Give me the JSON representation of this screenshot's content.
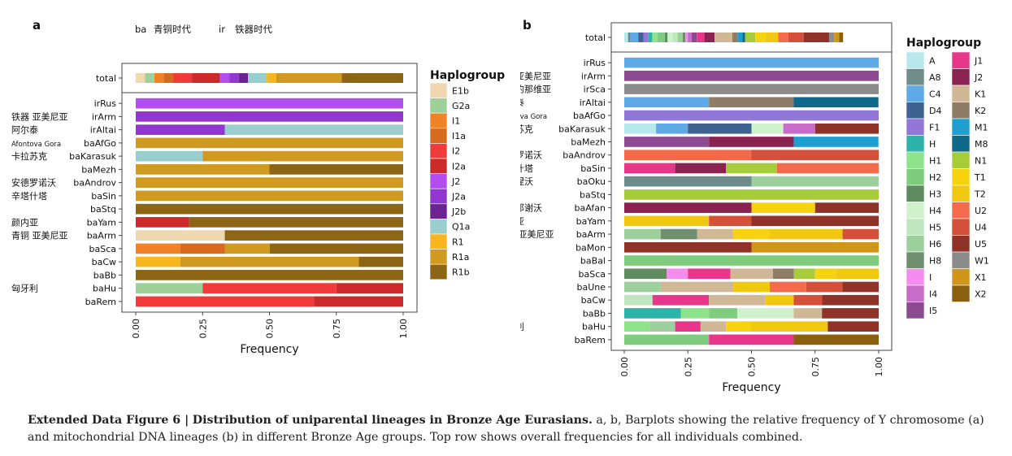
{
  "caption": {
    "label": "Extended Data Figure 6 |",
    "title": "Distribution of uniparental lineages in Bronze Age Eurasians.",
    "body": "a, b, Barplots showing the relative frequency of Y chromosome (a) and mitochondrial DNA lineages (b) in different Bronze Age groups. Top row shows overall frequencies for all individuals combined."
  },
  "chart_data": [
    {
      "panel": "a",
      "type": "bar",
      "orientation": "horizontal",
      "stacked": true,
      "prefix_note": [
        "ba",
        "青铜时代",
        "ir",
        "铁器时代"
      ],
      "xlabel": "Frequency",
      "xlim": [
        0,
        1
      ],
      "xticks": [
        "0.00",
        "0.25",
        "0.50",
        "0.75",
        "1.00"
      ],
      "legend_title": "Haplogroup",
      "legend_position": "right",
      "legend": [
        {
          "name": "E1b",
          "color": "#EFD8B0"
        },
        {
          "name": "G2a",
          "color": "#9ED09A"
        },
        {
          "name": "I1",
          "color": "#F28226"
        },
        {
          "name": "I1a",
          "color": "#D66A1E"
        },
        {
          "name": "I2",
          "color": "#F23A3A"
        },
        {
          "name": "I2a",
          "color": "#CC2A2A"
        },
        {
          "name": "J2",
          "color": "#B24DF0"
        },
        {
          "name": "J2a",
          "color": "#9236D0"
        },
        {
          "name": "J2b",
          "color": "#6A2390"
        },
        {
          "name": "Q1a",
          "color": "#9ACDCD"
        },
        {
          "name": "R1",
          "color": "#F7B61E"
        },
        {
          "name": "R1a",
          "color": "#CF9A1F"
        },
        {
          "name": "R1b",
          "color": "#8D6615"
        }
      ],
      "total": {
        "label": "total",
        "segments": [
          [
            "E1b",
            0.035
          ],
          [
            "G2a",
            0.035
          ],
          [
            "I1",
            0.035
          ],
          [
            "I1a",
            0.035
          ],
          [
            "I2",
            0.07
          ],
          [
            "I2a",
            0.105
          ],
          [
            "J2",
            0.035
          ],
          [
            "J2a",
            0.035
          ],
          [
            "J2b",
            0.035
          ],
          [
            "Q1a",
            0.07
          ],
          [
            "R1",
            0.035
          ],
          [
            "R1a",
            0.245
          ],
          [
            "R1b",
            0.24
          ]
        ]
      },
      "rows": [
        {
          "label": "irRus",
          "annot": "",
          "segments": [
            [
              "J2",
              1.0
            ]
          ]
        },
        {
          "label": "irArm",
          "annot": "铁器 亚美尼亚",
          "segments": [
            [
              "J2a",
              1.0
            ]
          ]
        },
        {
          "label": "irAltai",
          "annot": "阿尔泰",
          "segments": [
            [
              "J2a",
              0.333
            ],
            [
              "Q1a",
              0.667
            ]
          ]
        },
        {
          "label": "baAfGo",
          "annot": "Afontova Gora",
          "segments": [
            [
              "R1a",
              1.0
            ]
          ]
        },
        {
          "label": "baKarasuk",
          "annot": "卡拉苏克",
          "segments": [
            [
              "Q1a",
              0.25
            ],
            [
              "R1a",
              0.75
            ]
          ]
        },
        {
          "label": "baMezh",
          "annot": "",
          "segments": [
            [
              "R1a",
              0.5
            ],
            [
              "R1b",
              0.5
            ]
          ]
        },
        {
          "label": "baAndrov",
          "annot": "安德罗诺沃",
          "segments": [
            [
              "R1a",
              1.0
            ]
          ]
        },
        {
          "label": "baSin",
          "annot": "辛塔什塔",
          "segments": [
            [
              "R1a",
              1.0
            ]
          ]
        },
        {
          "label": "baStq",
          "annot": "",
          "segments": [
            [
              "R1b",
              1.0
            ]
          ]
        },
        {
          "label": "baYam",
          "annot": "颜内亚",
          "segments": [
            [
              "I2a",
              0.2
            ],
            [
              "R1b",
              0.8
            ]
          ]
        },
        {
          "label": "baArm",
          "annot": "青铜 亚美尼亚",
          "segments": [
            [
              "E1b",
              0.333
            ],
            [
              "R1b",
              0.667
            ]
          ]
        },
        {
          "label": "baSca",
          "annot": "",
          "segments": [
            [
              "I1",
              0.167
            ],
            [
              "I1a",
              0.167
            ],
            [
              "R1a",
              0.167
            ],
            [
              "R1b",
              0.5
            ]
          ]
        },
        {
          "label": "baCw",
          "annot": "",
          "segments": [
            [
              "R1",
              0.167
            ],
            [
              "R1a",
              0.667
            ],
            [
              "R1b",
              0.167
            ]
          ]
        },
        {
          "label": "baBb",
          "annot": "",
          "segments": [
            [
              "R1b",
              1.0
            ]
          ]
        },
        {
          "label": "baHu",
          "annot": "匈牙利",
          "segments": [
            [
              "G2a",
              0.25
            ],
            [
              "I2",
              0.5
            ],
            [
              "I2a",
              0.25
            ]
          ]
        },
        {
          "label": "baRem",
          "annot": "",
          "segments": [
            [
              "I2",
              0.667
            ],
            [
              "I2a",
              0.333
            ]
          ]
        }
      ]
    },
    {
      "panel": "b",
      "type": "bar",
      "orientation": "horizontal",
      "stacked": true,
      "xlabel": "Frequency",
      "xlim": [
        0,
        1
      ],
      "xticks": [
        "0.00",
        "0.25",
        "0.50",
        "0.75",
        "1.00"
      ],
      "legend_title": "Haplogroup",
      "legend_position": "right",
      "legend": [
        {
          "name": "A",
          "color": "#B6E8EC"
        },
        {
          "name": "A8",
          "color": "#6E8C8C"
        },
        {
          "name": "C4",
          "color": "#5EA9E6"
        },
        {
          "name": "D4",
          "color": "#3F6390"
        },
        {
          "name": "F1",
          "color": "#9077D8"
        },
        {
          "name": "H",
          "color": "#2CB3AA"
        },
        {
          "name": "H1",
          "color": "#8FE38A"
        },
        {
          "name": "H2",
          "color": "#7FCC7F"
        },
        {
          "name": "H3",
          "color": "#5E8C5E"
        },
        {
          "name": "H4",
          "color": "#CFF2CC"
        },
        {
          "name": "H5",
          "color": "#BFE6BF"
        },
        {
          "name": "H6",
          "color": "#9CCF9C"
        },
        {
          "name": "H8",
          "color": "#6F8F6F"
        },
        {
          "name": "I",
          "color": "#F58CF0"
        },
        {
          "name": "I4",
          "color": "#C96BC9"
        },
        {
          "name": "I5",
          "color": "#8C4A90"
        },
        {
          "name": "J1",
          "color": "#E8378A"
        },
        {
          "name": "J2",
          "color": "#8A2252"
        },
        {
          "name": "K1",
          "color": "#D0B896"
        },
        {
          "name": "K2",
          "color": "#8E7C66"
        },
        {
          "name": "M1",
          "color": "#1F9ED0"
        },
        {
          "name": "M8",
          "color": "#0F6A8A"
        },
        {
          "name": "N1",
          "color": "#A6CC3A"
        },
        {
          "name": "T1",
          "color": "#F7D20F"
        },
        {
          "name": "T2",
          "color": "#F0C810"
        },
        {
          "name": "U2",
          "color": "#F56A4A"
        },
        {
          "name": "U4",
          "color": "#D4503A"
        },
        {
          "name": "U5",
          "color": "#8F3328"
        },
        {
          "name": "W1",
          "color": "#8C8C8C"
        },
        {
          "name": "X1",
          "color": "#D0961A"
        },
        {
          "name": "X2",
          "color": "#8A6010"
        }
      ],
      "total": {
        "label": "total",
        "segments": [
          [
            "A",
            0.015
          ],
          [
            "A8",
            0.01
          ],
          [
            "C4",
            0.03
          ],
          [
            "D4",
            0.02
          ],
          [
            "F1",
            0.02
          ],
          [
            "H",
            0.015
          ],
          [
            "H1",
            0.02
          ],
          [
            "H2",
            0.03
          ],
          [
            "H3",
            0.01
          ],
          [
            "H4",
            0.02
          ],
          [
            "H5",
            0.02
          ],
          [
            "H6",
            0.02
          ],
          [
            "H8",
            0.01
          ],
          [
            "I",
            0.01
          ],
          [
            "I4",
            0.015
          ],
          [
            "I5",
            0.02
          ],
          [
            "J1",
            0.03
          ],
          [
            "J2",
            0.04
          ],
          [
            "K1",
            0.07
          ],
          [
            "K2",
            0.02
          ],
          [
            "M1",
            0.02
          ],
          [
            "M8",
            0.01
          ],
          [
            "N1",
            0.04
          ],
          [
            "T1",
            0.04
          ],
          [
            "T2",
            0.05
          ],
          [
            "U2",
            0.04
          ],
          [
            "U4",
            0.06
          ],
          [
            "U5",
            0.1
          ],
          [
            "W1",
            0.02
          ],
          [
            "X1",
            0.02
          ],
          [
            "X2",
            0.015
          ]
        ]
      },
      "rows": [
        {
          "label": "irRus",
          "annot": "",
          "segments": [
            [
              "C4",
              1.0
            ]
          ]
        },
        {
          "label": "irArm",
          "annot": "铁器亚美尼亚",
          "segments": [
            [
              "I5",
              1.0
            ]
          ]
        },
        {
          "label": "irSca",
          "annot": "斯堪的那维亚",
          "segments": [
            [
              "W1",
              1.0
            ]
          ]
        },
        {
          "label": "irAltai",
          "annot": "阿尔泰",
          "segments": [
            [
              "C4",
              0.333
            ],
            [
              "K2",
              0.333
            ],
            [
              "M8",
              0.333
            ]
          ]
        },
        {
          "label": "baAfGo",
          "annot": "Afontova Gora",
          "segments": [
            [
              "F1",
              1.0
            ]
          ]
        },
        {
          "label": "baKarasuk",
          "annot": "卡拉苏克",
          "segments": [
            [
              "A",
              0.125
            ],
            [
              "C4",
              0.125
            ],
            [
              "D4",
              0.25
            ],
            [
              "H4",
              0.125
            ],
            [
              "I4",
              0.125
            ],
            [
              "U5",
              0.25
            ]
          ]
        },
        {
          "label": "baMezh",
          "annot": "",
          "segments": [
            [
              "I5",
              0.333
            ],
            [
              "J2",
              0.333
            ],
            [
              "M1",
              0.333
            ]
          ]
        },
        {
          "label": "baAndrov",
          "annot": "安德罗诺沃",
          "segments": [
            [
              "U2",
              0.5
            ],
            [
              "U4",
              0.5
            ]
          ]
        },
        {
          "label": "baSin",
          "annot": "辛塔什塔",
          "segments": [
            [
              "J1",
              0.2
            ],
            [
              "J2",
              0.2
            ],
            [
              "N1",
              0.2
            ],
            [
              "U2",
              0.4
            ]
          ]
        },
        {
          "label": "baOku",
          "annot": "奥库涅沃",
          "segments": [
            [
              "A8",
              0.5
            ],
            [
              "H6",
              0.5
            ]
          ]
        },
        {
          "label": "baStq",
          "annot": "",
          "segments": [
            [
              "N1",
              1.0
            ]
          ]
        },
        {
          "label": "baAfan",
          "annot": "阿凡那谢沃",
          "segments": [
            [
              "J2",
              0.5
            ],
            [
              "T1",
              0.25
            ],
            [
              "U5",
              0.25
            ]
          ]
        },
        {
          "label": "baYam",
          "annot": "颜内亚",
          "segments": [
            [
              "T2",
              0.333
            ],
            [
              "U4",
              0.167
            ],
            [
              "U5",
              0.5
            ]
          ]
        },
        {
          "label": "baArm",
          "annot": "青铜 亚美尼亚",
          "segments": [
            [
              "H6",
              0.143
            ],
            [
              "H8",
              0.143
            ],
            [
              "K1",
              0.143
            ],
            [
              "T1",
              0.143
            ],
            [
              "T2",
              0.286
            ],
            [
              "U4",
              0.142
            ]
          ]
        },
        {
          "label": "baMon",
          "annot": "",
          "segments": [
            [
              "U5",
              0.5
            ],
            [
              "X1",
              0.5
            ]
          ]
        },
        {
          "label": "baBal",
          "annot": "",
          "segments": [
            [
              "H2",
              1.0
            ]
          ]
        },
        {
          "label": "baSca",
          "annot": "",
          "segments": [
            [
              "H3",
              0.167
            ],
            [
              "I",
              0.083
            ],
            [
              "J1",
              0.167
            ],
            [
              "K1",
              0.167
            ],
            [
              "K2",
              0.083
            ],
            [
              "N1",
              0.083
            ],
            [
              "T1",
              0.083
            ],
            [
              "T2",
              0.167
            ]
          ]
        },
        {
          "label": "baUne",
          "annot": "",
          "segments": [
            [
              "H6",
              0.143
            ],
            [
              "K1",
              0.286
            ],
            [
              "T2",
              0.143
            ],
            [
              "U2",
              0.143
            ],
            [
              "U4",
              0.143
            ],
            [
              "U5",
              0.142
            ]
          ]
        },
        {
          "label": "baCw",
          "annot": "",
          "segments": [
            [
              "H5",
              0.111
            ],
            [
              "J1",
              0.222
            ],
            [
              "K1",
              0.222
            ],
            [
              "T2",
              0.111
            ],
            [
              "U4",
              0.111
            ],
            [
              "U5",
              0.223
            ]
          ]
        },
        {
          "label": "baBb",
          "annot": "",
          "segments": [
            [
              "H",
              0.222
            ],
            [
              "H1",
              0.111
            ],
            [
              "H2",
              0.111
            ],
            [
              "H4",
              0.222
            ],
            [
              "K1",
              0.111
            ],
            [
              "U5",
              0.223
            ]
          ]
        },
        {
          "label": "baHu",
          "annot": "匈牙利",
          "segments": [
            [
              "H1",
              0.1
            ],
            [
              "H6",
              0.1
            ],
            [
              "J1",
              0.1
            ],
            [
              "K1",
              0.1
            ],
            [
              "T1",
              0.1
            ],
            [
              "T2",
              0.3
            ],
            [
              "U5",
              0.2
            ]
          ]
        },
        {
          "label": "baRem",
          "annot": "",
          "segments": [
            [
              "H2",
              0.333
            ],
            [
              "J1",
              0.333
            ],
            [
              "X2",
              0.334
            ]
          ]
        }
      ]
    }
  ]
}
